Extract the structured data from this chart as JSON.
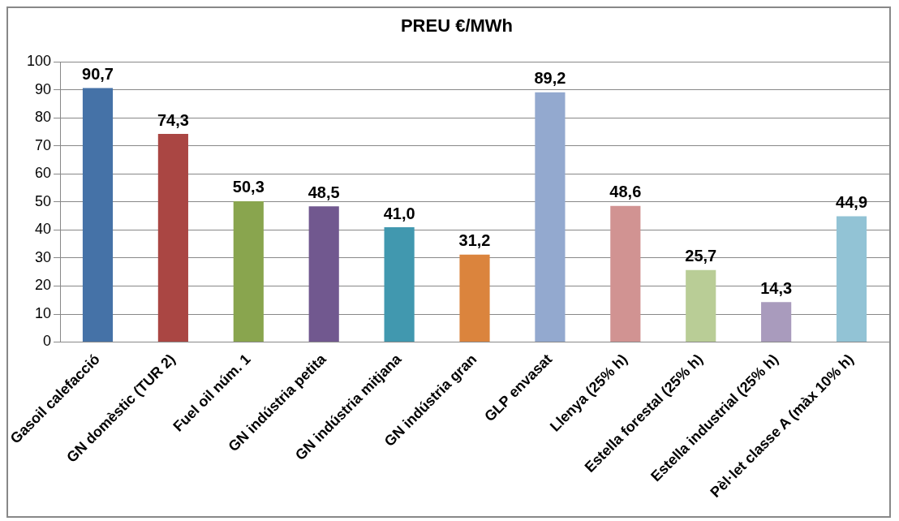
{
  "chart_data": {
    "type": "bar",
    "title": "PREU €/MWh",
    "categories": [
      "Gasoil calefacció",
      "GN domèstic (TUR 2)",
      "Fuel oil núm. 1",
      "GN indústria petita",
      "GN indústria mitjana",
      "GN indústria gran",
      "GLP envasat",
      "Llenya (25% h)",
      "Estella forestal (25% h)",
      "Estella industrial (25% h)",
      "Pèl·let classe A (màx 10% h)"
    ],
    "values": [
      90.7,
      74.3,
      50.3,
      48.5,
      41.0,
      31.2,
      89.2,
      48.6,
      25.7,
      14.3,
      44.9
    ],
    "colors": [
      "#4572a7",
      "#aa4643",
      "#89a54e",
      "#71588f",
      "#4198af",
      "#db843d",
      "#93a9cf",
      "#d19392",
      "#b9cd96",
      "#a99bbd",
      "#92c3d5"
    ],
    "value_labels": [
      "90,7",
      "74,3",
      "50,3",
      "48,5",
      "41,0",
      "31,2",
      "89,2",
      "48,6",
      "25,7",
      "14,3",
      "44,9"
    ],
    "ylim": [
      0,
      100
    ],
    "yticks": [
      0,
      10,
      20,
      30,
      40,
      50,
      60,
      70,
      80,
      90,
      100
    ],
    "grid": "y",
    "legend": false
  }
}
